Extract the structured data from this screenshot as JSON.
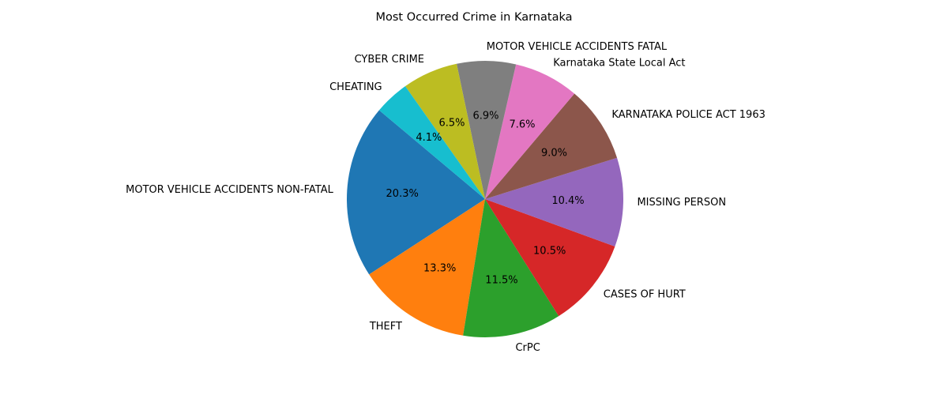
{
  "chart_data": {
    "type": "pie",
    "title": "Most Occurred Crime in Karnataka",
    "start_angle_deg": 140,
    "direction": "counterclockwise",
    "slices": [
      {
        "label": "MOTOR VEHICLE ACCIDENTS NON-FATAL",
        "value": 20.3,
        "pct_label": "20.3%",
        "color": "#1f77b4"
      },
      {
        "label": "THEFT",
        "value": 13.3,
        "pct_label": "13.3%",
        "color": "#ff7f0e"
      },
      {
        "label": "CrPC",
        "value": 11.5,
        "pct_label": "11.5%",
        "color": "#2ca02c"
      },
      {
        "label": "CASES OF HURT",
        "value": 10.5,
        "pct_label": "10.5%",
        "color": "#d62728"
      },
      {
        "label": "MISSING PERSON",
        "value": 10.4,
        "pct_label": "10.4%",
        "color": "#9467bd"
      },
      {
        "label": "KARNATAKA POLICE ACT 1963",
        "value": 9.0,
        "pct_label": "9.0%",
        "color": "#8c564b"
      },
      {
        "label": "Karnataka State Local Act",
        "value": 7.6,
        "pct_label": "7.6%",
        "color": "#e377c2"
      },
      {
        "label": "MOTOR VEHICLE ACCIDENTS FATAL",
        "value": 6.9,
        "pct_label": "6.9%",
        "color": "#7f7f7f"
      },
      {
        "label": "CYBER CRIME",
        "value": 6.5,
        "pct_label": "6.5%",
        "color": "#bcbd22"
      },
      {
        "label": "CHEATING",
        "value": 4.1,
        "pct_label": "4.1%",
        "color": "#17becf"
      }
    ]
  }
}
